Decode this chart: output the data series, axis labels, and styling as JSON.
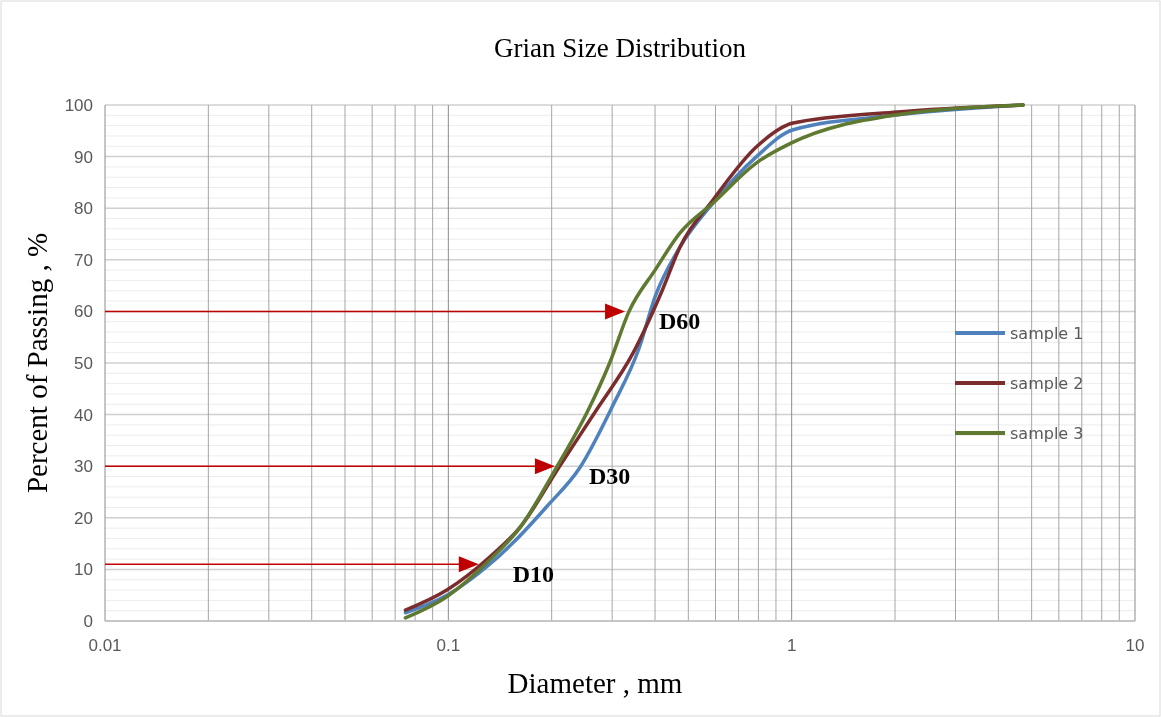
{
  "chart_data": {
    "type": "line",
    "title": "Grian Size Distribution",
    "xlabel": "Diameter , mm",
    "ylabel": "Percent of Passing , %",
    "log": "x",
    "grid": true,
    "legend": "right",
    "marker": "none",
    "line_style": "solid",
    "xlim": [
      0.01,
      10
    ],
    "ylim": [
      0,
      100
    ],
    "xticks": [
      0.01,
      {
        "value": 0.02,
        "label": null
      },
      {
        "value": 0.03,
        "label": null
      },
      {
        "value": 0.04,
        "label": null
      },
      {
        "value": 0.05,
        "label": null
      },
      {
        "value": 0.06,
        "label": null
      },
      {
        "value": 0.07,
        "label": null
      },
      {
        "value": 0.08,
        "label": null
      },
      {
        "value": 0.09,
        "label": null
      },
      0.1,
      {
        "value": 0.2,
        "label": null
      },
      {
        "value": 0.3,
        "label": null
      },
      {
        "value": 0.4,
        "label": null
      },
      {
        "value": 0.5,
        "label": null
      },
      {
        "value": 0.6,
        "label": null
      },
      {
        "value": 0.7,
        "label": null
      },
      {
        "value": 0.8,
        "label": null
      },
      {
        "value": 0.9,
        "label": null
      },
      1,
      {
        "value": 2,
        "label": null
      },
      {
        "value": 3,
        "label": null
      },
      {
        "value": 4,
        "label": null
      },
      {
        "value": 5,
        "label": null
      },
      {
        "value": 6,
        "label": null
      },
      {
        "value": 7,
        "label": null
      },
      {
        "value": 8,
        "label": null
      },
      {
        "value": 9,
        "label": null
      },
      10
    ],
    "yticks": [
      0,
      {
        "value": 2,
        "label": null
      },
      {
        "value": 4,
        "label": null
      },
      {
        "value": 6,
        "label": null
      },
      {
        "value": 8,
        "label": null
      },
      10,
      {
        "value": 12,
        "label": null
      },
      {
        "value": 14,
        "label": null
      },
      {
        "value": 16,
        "label": null
      },
      {
        "value": 18,
        "label": null
      },
      20,
      {
        "value": 22,
        "label": null
      },
      {
        "value": 24,
        "label": null
      },
      {
        "value": 26,
        "label": null
      },
      {
        "value": 28,
        "label": null
      },
      30,
      {
        "value": 32,
        "label": null
      },
      {
        "value": 34,
        "label": null
      },
      {
        "value": 36,
        "label": null
      },
      {
        "value": 38,
        "label": null
      },
      40,
      {
        "value": 42,
        "label": null
      },
      {
        "value": 44,
        "label": null
      },
      {
        "value": 46,
        "label": null
      },
      {
        "value": 48,
        "label": null
      },
      50,
      {
        "value": 52,
        "label": null
      },
      {
        "value": 54,
        "label": null
      },
      {
        "value": 56,
        "label": null
      },
      {
        "value": 58,
        "label": null
      },
      60,
      {
        "value": 62,
        "label": null
      },
      {
        "value": 64,
        "label": null
      },
      {
        "value": 66,
        "label": null
      },
      {
        "value": 68,
        "label": null
      },
      70,
      {
        "value": 72,
        "label": null
      },
      {
        "value": 74,
        "label": null
      },
      {
        "value": 76,
        "label": null
      },
      {
        "value": 78,
        "label": null
      },
      80,
      {
        "value": 82,
        "label": null
      },
      {
        "value": 84,
        "label": null
      },
      {
        "value": 86,
        "label": null
      },
      {
        "value": 88,
        "label": null
      },
      90,
      {
        "value": 92,
        "label": null
      },
      {
        "value": 94,
        "label": null
      },
      {
        "value": 96,
        "label": null
      },
      {
        "value": 98,
        "label": null
      },
      100
    ],
    "series": [
      {
        "name": "sample 1",
        "color": "#4f81bd",
        "x": [
          0.075,
          0.099,
          0.132,
          0.154,
          0.193,
          0.242,
          0.3,
          0.36,
          0.4,
          0.473,
          0.59,
          0.79,
          1.01,
          1.98,
          4.72
        ],
        "values": [
          1.6,
          5,
          11,
          15.1,
          22.1,
          29.8,
          41.5,
          53,
          62.8,
          72.5,
          81,
          90,
          95.2,
          98,
          100
        ]
      },
      {
        "name": "sample 2",
        "color": "#7b2c2c",
        "x": [
          0.075,
          0.099,
          0.132,
          0.162,
          0.21,
          0.27,
          0.345,
          0.42,
          0.473,
          0.59,
          0.79,
          1.01,
          1.98,
          4.72
        ],
        "values": [
          2.1,
          6,
          12.4,
          18.2,
          29.8,
          40.9,
          51.9,
          64.1,
          72.5,
          81.6,
          91.9,
          96.5,
          98.6,
          100
        ]
      },
      {
        "name": "sample 3",
        "color": "#5f7a30",
        "x": [
          0.075,
          0.099,
          0.132,
          0.162,
          0.21,
          0.253,
          0.295,
          0.336,
          0.4,
          0.473,
          0.59,
          0.79,
          0.995,
          1.98,
          4.72
        ],
        "values": [
          0.6,
          4.7,
          11.8,
          18.2,
          30.6,
          40.3,
          50,
          60,
          68,
          75.2,
          81,
          88.8,
          92.6,
          98,
          100
        ]
      }
    ],
    "annotations": [
      {
        "text": "D60",
        "x": 0.336,
        "y": 60
      },
      {
        "text": "D30",
        "x": 0.21,
        "y": 30
      },
      {
        "text": "D10",
        "x": 0.126,
        "y": 11
      }
    ]
  }
}
